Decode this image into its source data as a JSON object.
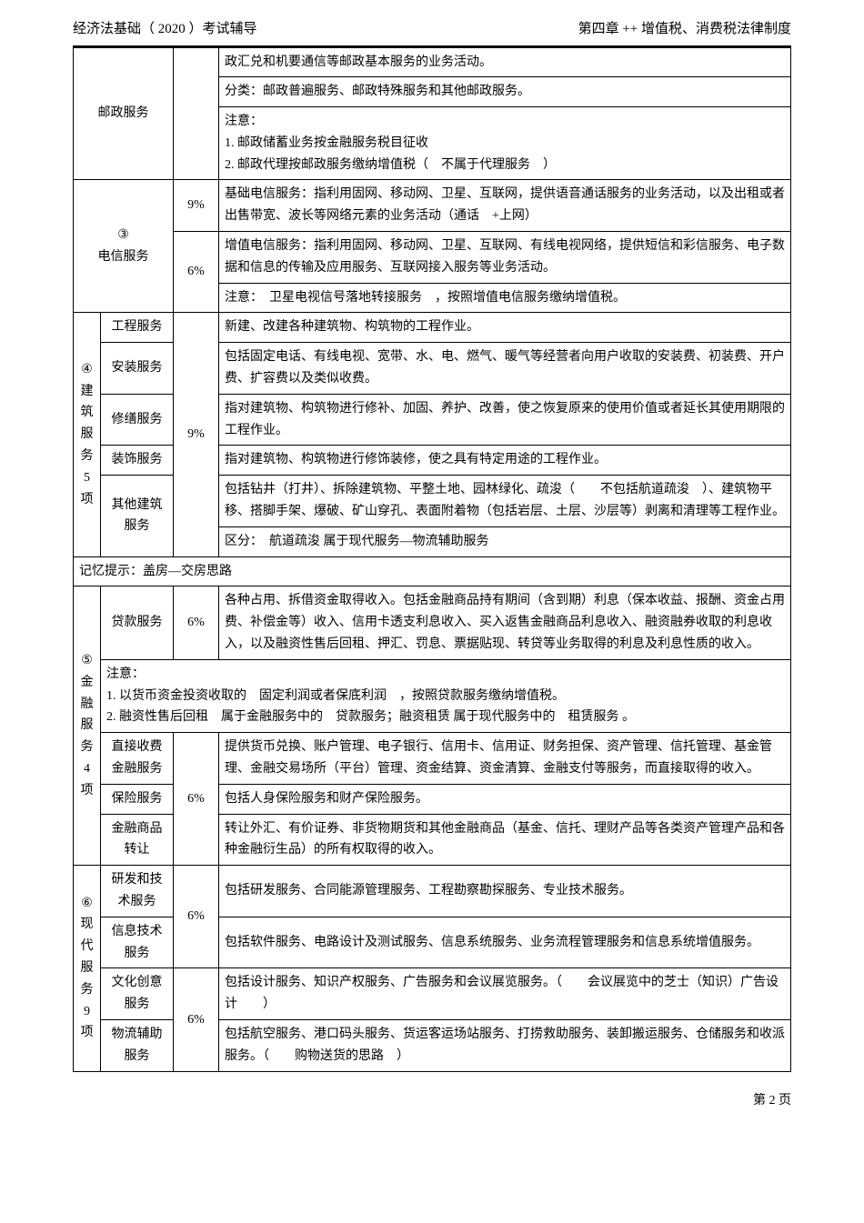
{
  "header": {
    "left": "经济法基础（ 2020 ）考试辅导",
    "right": "第四章 ++ 增值税、消费税法律制度"
  },
  "rows": {
    "postal": {
      "cat_label": "邮政服务",
      "desc1": "政汇兑和机要通信等邮政基本服务的业务活动。",
      "desc2": "分类：邮政普遍服务、邮政特殊服务和其他邮政服务。",
      "desc3": "注意：\n1. 邮政储蓄业务按金融服务税目征收\n2. 邮政代理按邮政服务缴纳增值税（　不属于代理服务　）"
    },
    "telecom": {
      "num": "③",
      "cat_label": "电信服务",
      "rate1": "9%",
      "desc1": "基础电信服务：指利用固网、移动网、卫星、互联网，提供语音通话服务的业务活动，以及出租或者出售带宽、波长等网络元素的业务活动（通话　+上网）",
      "rate2": "6%",
      "desc2a": "增值电信服务：指利用固网、移动网、卫星、互联网、有线电视网络，提供短信和彩信服务、电子数据和信息的传输及应用服务、互联网接入服务等业务活动。",
      "desc2b": "注意：　卫星电视信号落地转接服务　，按照增值电信服务缴纳增值税。"
    },
    "construction": {
      "num_label": "④\n建\n筑\n服\n务\n5\n项",
      "rate": "9%",
      "r1_label": "工程服务",
      "r1_desc": "新建、改建各种建筑物、构筑物的工程作业。",
      "r2_label": "安装服务",
      "r2_desc": "包括固定电话、有线电视、宽带、水、电、燃气、暖气等经营者向用户收取的安装费、初装费、开户费、扩容费以及类似收费。",
      "r3_label": "修缮服务",
      "r3_desc": "指对建筑物、构筑物进行修补、加固、养护、改善，使之恢复原来的使用价值或者延长其使用期限的工程作业。",
      "r4_label": "装饰服务",
      "r4_desc": "指对建筑物、构筑物进行修饰装修，使之具有特定用途的工程作业。",
      "r5_label": "其他建筑服务",
      "r5_desc_a": "包括钻井（打井）、拆除建筑物、平整土地、园林绿化、疏浚（　　不包括航道疏浚　）、建筑物平移、搭脚手架、爆破、矿山穿孔、表面附着物（包括岩层、土层、沙层等）剥离和清理等工程作业。",
      "r5_desc_b": "区分：　航道疏浚 属于现代服务—物流辅助服务"
    },
    "memo1": "记忆提示：盖房—交房思路",
    "finance": {
      "num_label": "⑤\n金\n融\n服\n务\n4\n项",
      "r1_label": "贷款服务",
      "r1_rate": "6%",
      "r1_desc": "各种占用、拆借资金取得收入。包括金融商品持有期间（含到期）利息（保本收益、报酬、资金占用费、补偿金等）收入、信用卡透支利息收入、买入返售金融商品利息收入、融资融券收取的利息收入，以及融资性售后回租、押汇、罚息、票据贴现、转贷等业务取得的利息及利息性质的收入。",
      "note": "注意：\n1. 以货币资金投资收取的　固定利润或者保底利润　，按照贷款服务缴纳增值税。\n2. 融资性售后回租　属于金融服务中的　贷款服务；融资租赁 属于现代服务中的　租赁服务 。",
      "r2_label": "直接收费金融服务",
      "r2_rate": "6%",
      "r2_desc": "提供货币兑换、账户管理、电子银行、信用卡、信用证、财务担保、资产管理、信托管理、基金管理、金融交易场所（平台）管理、资金结算、资金清算、金融支付等服务，而直接取得的收入。",
      "r3_label": "保险服务",
      "r3_desc": "包括人身保险服务和财产保险服务。",
      "r4_label": "金融商品转让",
      "r4_desc": "转让外汇、有价证券、非货物期货和其他金融商品（基金、信托、理财产品等各类资产管理产品和各种金融衍生品）的所有权取得的收入。"
    },
    "modern": {
      "num_label": "⑥\n现\n代\n服\n务\n9\n项",
      "r1_label": "研发和技术服务",
      "r1_rate": "6%",
      "r1_desc": "包括研发服务、合同能源管理服务、工程勘察勘探服务、专业技术服务。",
      "r2_label": "信息技术服务",
      "r2_desc": "包括软件服务、电路设计及测试服务、信息系统服务、业务流程管理服务和信息系统增值服务。",
      "r3_label": "文化创意服务",
      "r3_rate": "6%",
      "r3_desc": "包括设计服务、知识产权服务、广告服务和会议展览服务。（　　会议展览中的芝士（知识）广告设计　　）",
      "r4_label": "物流辅助服务",
      "r4_desc": "包括航空服务、港口码头服务、货运客运场站服务、打捞救助服务、装卸搬运服务、仓储服务和收派服务。（　　购物送货的思路　）"
    }
  },
  "footer": "第 2 页"
}
